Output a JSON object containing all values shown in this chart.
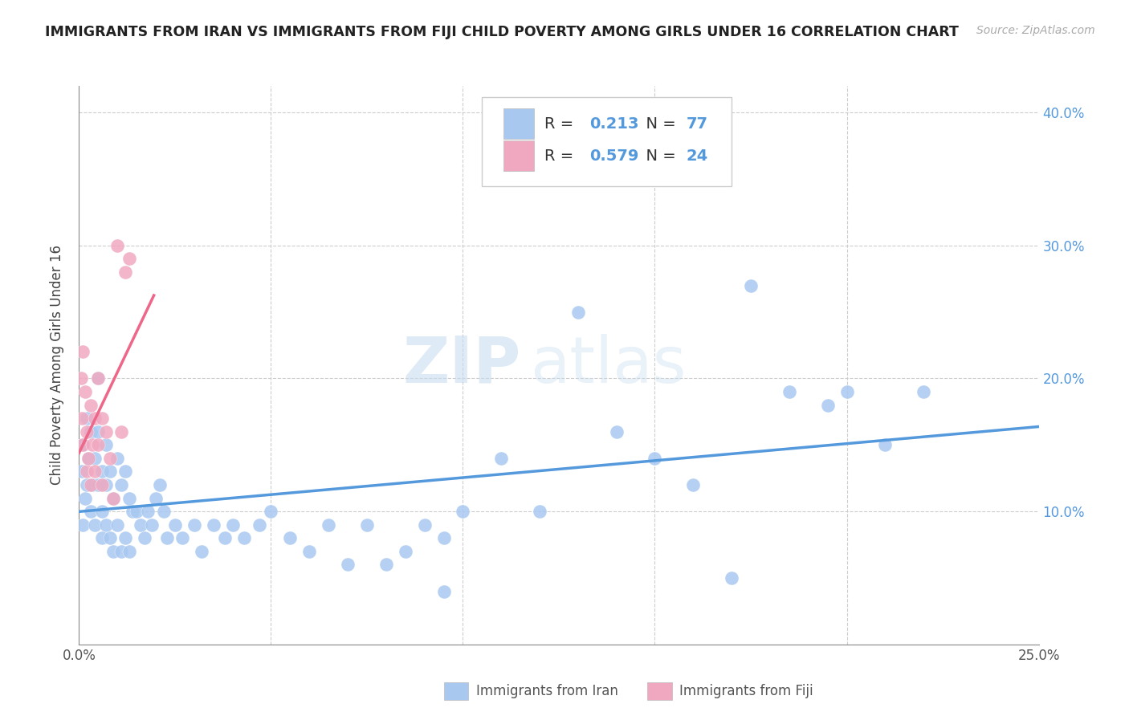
{
  "title": "IMMIGRANTS FROM IRAN VS IMMIGRANTS FROM FIJI CHILD POVERTY AMONG GIRLS UNDER 16 CORRELATION CHART",
  "source": "Source: ZipAtlas.com",
  "ylabel": "Child Poverty Among Girls Under 16",
  "xlim": [
    0.0,
    0.25
  ],
  "ylim": [
    0.0,
    0.42
  ],
  "xticks": [
    0.0,
    0.05,
    0.1,
    0.15,
    0.2,
    0.25
  ],
  "xticklabels": [
    "0.0%",
    "",
    "",
    "",
    "",
    "25.0%"
  ],
  "yticks": [
    0.0,
    0.1,
    0.2,
    0.3,
    0.4
  ],
  "yticklabels_right": [
    "",
    "10.0%",
    "20.0%",
    "30.0%",
    "40.0%"
  ],
  "iran_color": "#a8c8f0",
  "fiji_color": "#f0a8c0",
  "iran_line_color": "#5599dd",
  "fiji_line_color": "#ee6688",
  "iran_R": 0.213,
  "iran_N": 77,
  "fiji_R": 0.579,
  "fiji_N": 24,
  "watermark_zip": "ZIP",
  "watermark_atlas": "atlas",
  "background_color": "#ffffff",
  "grid_color": "#cccccc",
  "legend_label_iran": "Immigrants from Iran",
  "legend_label_fiji": "Immigrants from Fiji",
  "iran_scatter_x": [
    0.0008,
    0.001,
    0.001,
    0.0015,
    0.002,
    0.002,
    0.0025,
    0.003,
    0.003,
    0.0035,
    0.004,
    0.004,
    0.005,
    0.005,
    0.005,
    0.006,
    0.006,
    0.006,
    0.007,
    0.007,
    0.007,
    0.008,
    0.008,
    0.009,
    0.009,
    0.01,
    0.01,
    0.011,
    0.011,
    0.012,
    0.012,
    0.013,
    0.013,
    0.014,
    0.015,
    0.016,
    0.017,
    0.018,
    0.019,
    0.02,
    0.021,
    0.022,
    0.023,
    0.025,
    0.027,
    0.03,
    0.032,
    0.035,
    0.038,
    0.04,
    0.043,
    0.047,
    0.05,
    0.055,
    0.06,
    0.065,
    0.07,
    0.075,
    0.08,
    0.085,
    0.09,
    0.095,
    0.1,
    0.11,
    0.12,
    0.13,
    0.14,
    0.15,
    0.16,
    0.175,
    0.185,
    0.195,
    0.2,
    0.21,
    0.22,
    0.17,
    0.095
  ],
  "iran_scatter_y": [
    0.13,
    0.09,
    0.15,
    0.11,
    0.17,
    0.12,
    0.14,
    0.16,
    0.1,
    0.12,
    0.14,
    0.09,
    0.2,
    0.16,
    0.12,
    0.13,
    0.1,
    0.08,
    0.15,
    0.12,
    0.09,
    0.13,
    0.08,
    0.11,
    0.07,
    0.14,
    0.09,
    0.12,
    0.07,
    0.13,
    0.08,
    0.11,
    0.07,
    0.1,
    0.1,
    0.09,
    0.08,
    0.1,
    0.09,
    0.11,
    0.12,
    0.1,
    0.08,
    0.09,
    0.08,
    0.09,
    0.07,
    0.09,
    0.08,
    0.09,
    0.08,
    0.09,
    0.1,
    0.08,
    0.07,
    0.09,
    0.06,
    0.09,
    0.06,
    0.07,
    0.09,
    0.08,
    0.1,
    0.14,
    0.1,
    0.25,
    0.16,
    0.14,
    0.12,
    0.27,
    0.19,
    0.18,
    0.19,
    0.15,
    0.19,
    0.05,
    0.04
  ],
  "fiji_scatter_x": [
    0.0005,
    0.0008,
    0.001,
    0.001,
    0.0015,
    0.002,
    0.002,
    0.0025,
    0.003,
    0.003,
    0.0035,
    0.004,
    0.004,
    0.005,
    0.005,
    0.006,
    0.006,
    0.007,
    0.008,
    0.009,
    0.01,
    0.011,
    0.012,
    0.013
  ],
  "fiji_scatter_y": [
    0.2,
    0.17,
    0.22,
    0.15,
    0.19,
    0.13,
    0.16,
    0.14,
    0.12,
    0.18,
    0.15,
    0.17,
    0.13,
    0.2,
    0.15,
    0.17,
    0.12,
    0.16,
    0.14,
    0.11,
    0.3,
    0.16,
    0.28,
    0.29
  ]
}
